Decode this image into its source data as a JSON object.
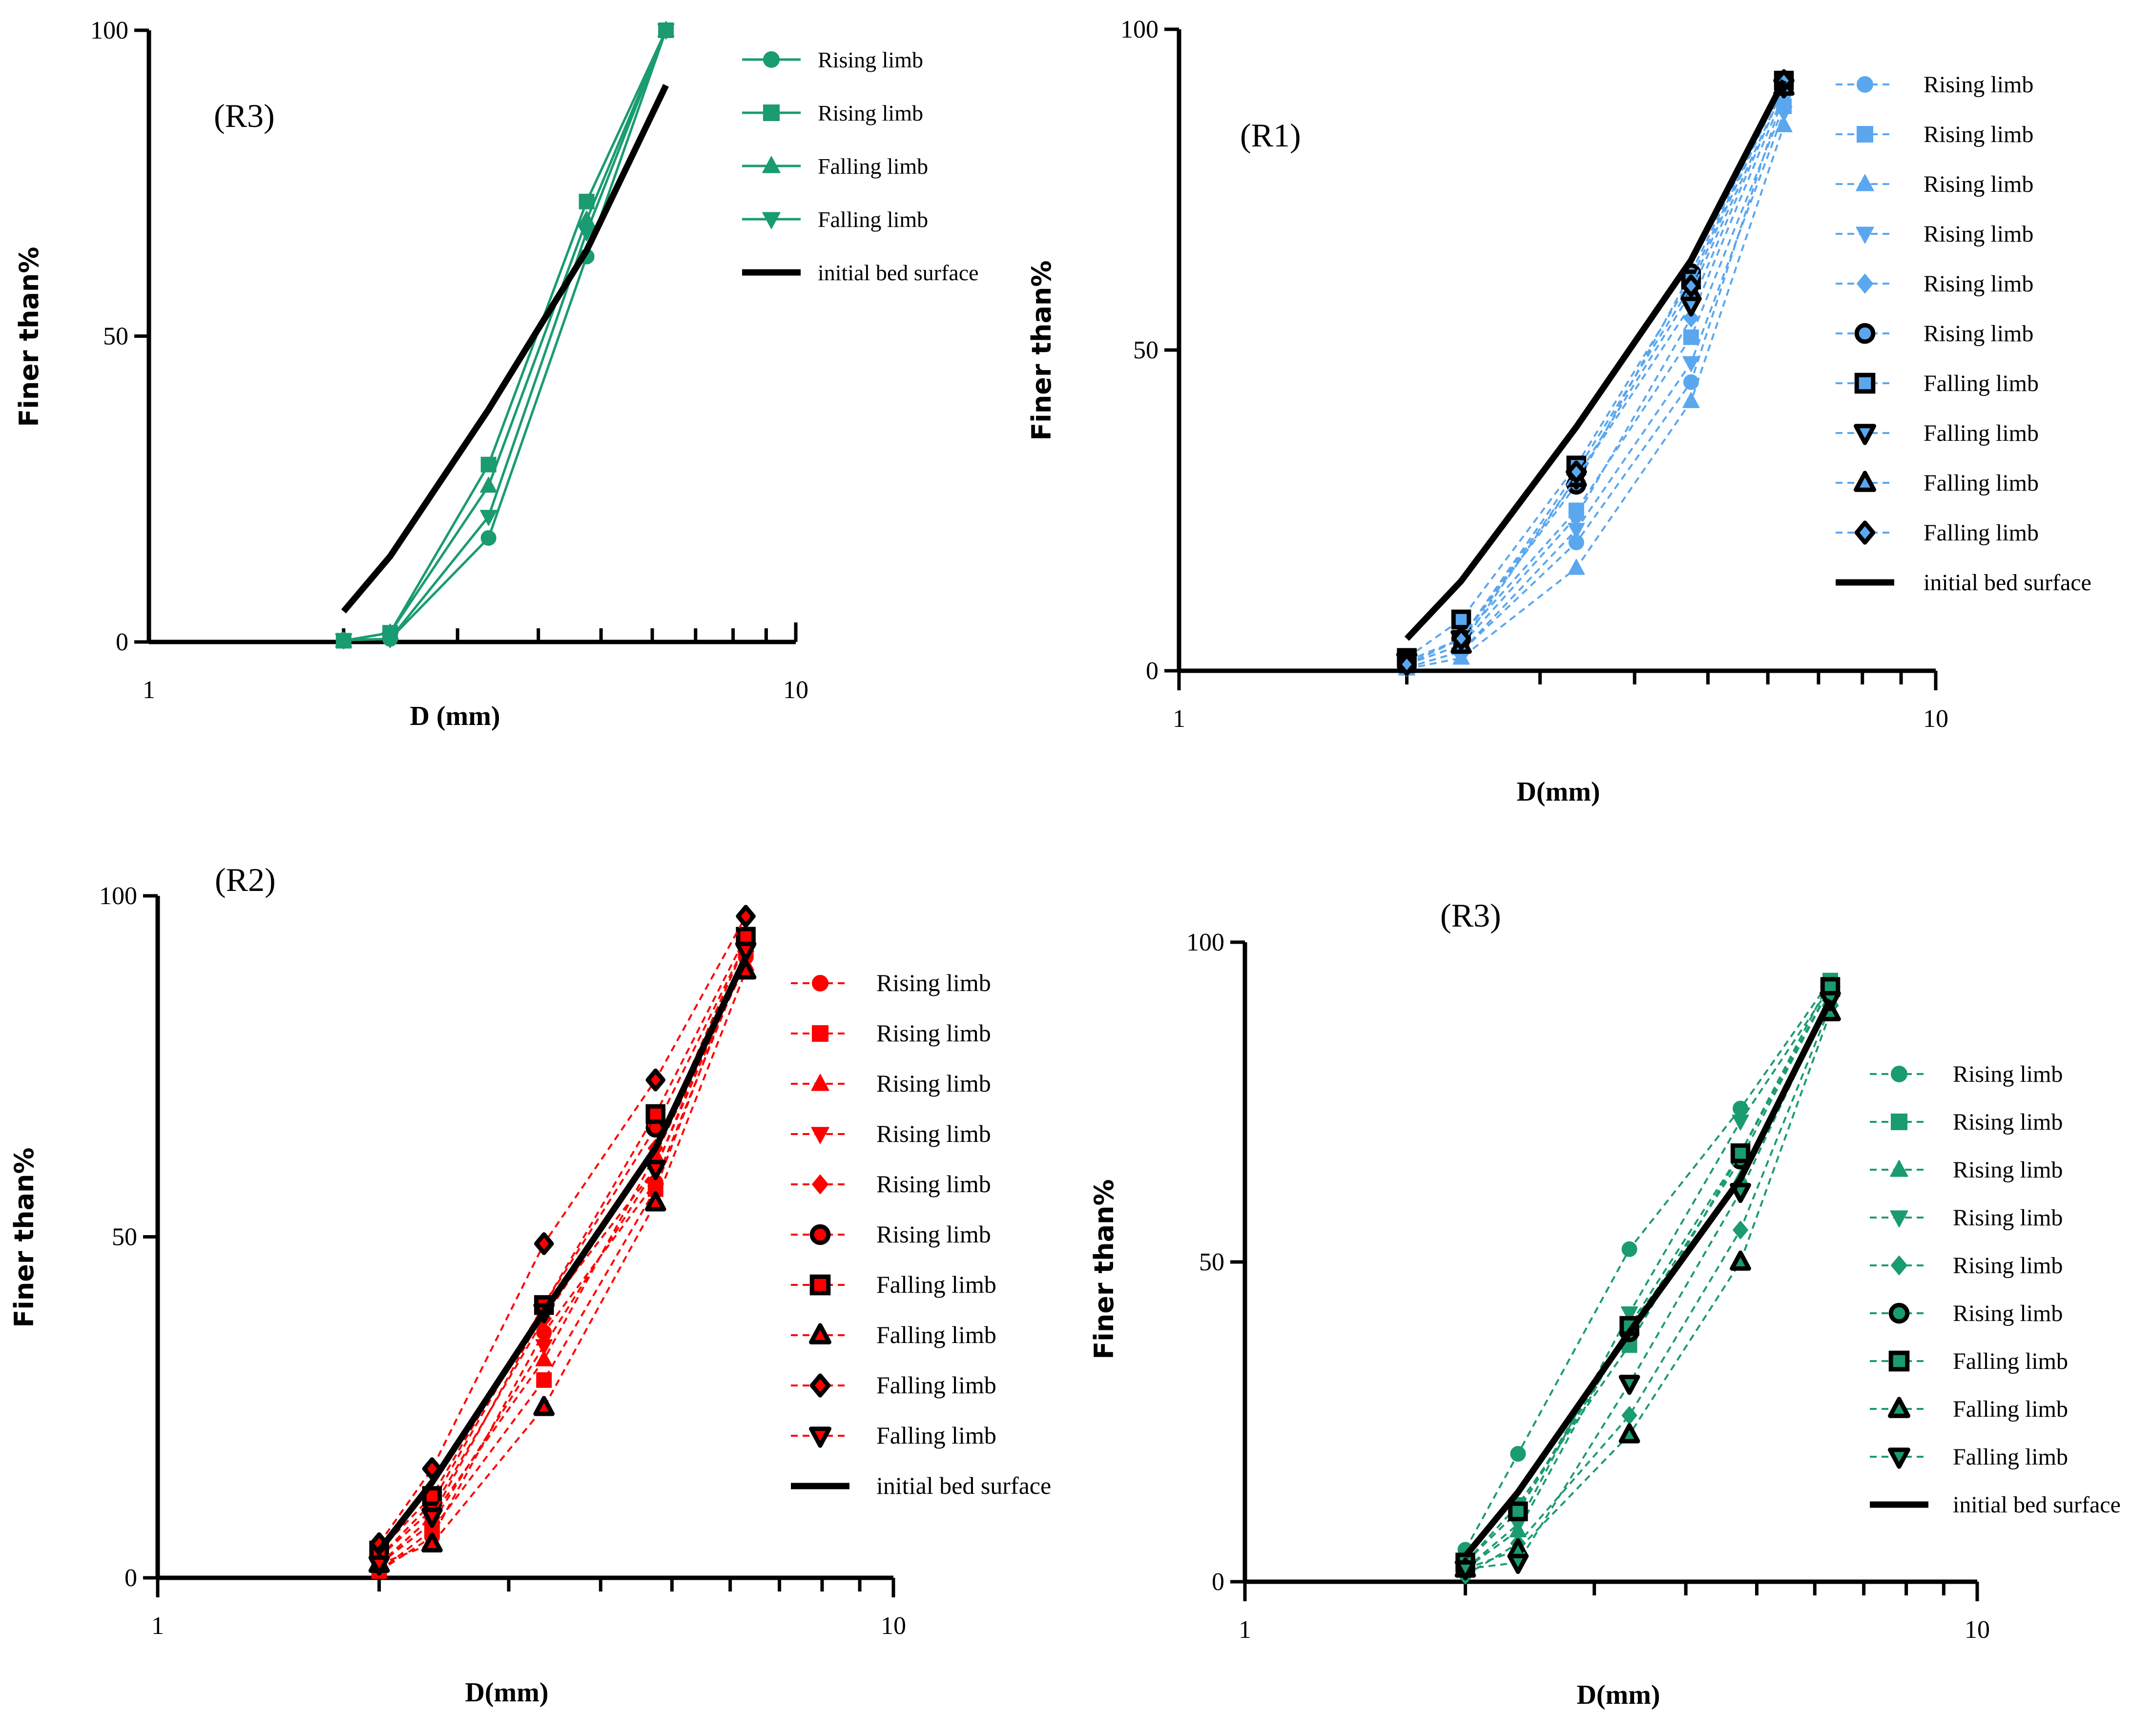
{
  "colors": {
    "green": "#1a9b72",
    "blue": "#5aa7f0",
    "red": "#ff0000",
    "black": "#000000"
  },
  "chart_data": [
    {
      "id": "panel-r3-top",
      "type": "line",
      "title": "(R3)",
      "xlabel": "D (mm)",
      "ylabel": "Finer than%",
      "xscale": "log",
      "xlim": [
        1,
        10
      ],
      "ylim": [
        0,
        100
      ],
      "xticks": [
        {
          "v": 1,
          "label": "1"
        },
        {
          "v": 10,
          "label": "10"
        }
      ],
      "yticks": [
        {
          "v": 0,
          "label": "0"
        },
        {
          "v": 50,
          "label": "50"
        },
        {
          "v": 100,
          "label": "100"
        }
      ],
      "legend_position": "top-right",
      "x": [
        2,
        2.36,
        3.35,
        4.75,
        6.3
      ],
      "series": [
        {
          "name": "Rising limb",
          "marker": "circle",
          "style": "solid",
          "color": "#1a9b72",
          "values": [
            0.3,
            0.5,
            17,
            63,
            100
          ]
        },
        {
          "name": "Rising limb",
          "marker": "square",
          "style": "solid",
          "color": "#1a9b72",
          "values": [
            0.2,
            1.5,
            29,
            72,
            100
          ]
        },
        {
          "name": "Falling limb",
          "marker": "triangle-up",
          "style": "solid",
          "color": "#1a9b72",
          "values": [
            0.2,
            1.5,
            25.5,
            69,
            100
          ]
        },
        {
          "name": "Falling limb",
          "marker": "triangle-down",
          "style": "solid",
          "color": "#1a9b72",
          "values": [
            0.3,
            0.5,
            20.5,
            67,
            100
          ]
        },
        {
          "name": "initial bed surface",
          "marker": "none",
          "style": "thick",
          "color": "#000000",
          "x": [
            2,
            2.36,
            3.35,
            4.75,
            6.3
          ],
          "values": [
            5,
            14,
            38,
            64,
            91
          ]
        }
      ]
    },
    {
      "id": "panel-r1",
      "type": "line",
      "title": "(R1)",
      "xlabel": "D(mm)",
      "ylabel": "Finer than%",
      "xscale": "log",
      "xlim": [
        1,
        10
      ],
      "ylim": [
        0,
        100
      ],
      "xticks": [
        {
          "v": 1,
          "label": "1"
        },
        {
          "v": 10,
          "label": "10"
        }
      ],
      "yticks": [
        {
          "v": 0,
          "label": "0"
        },
        {
          "v": 50,
          "label": "50"
        },
        {
          "v": 100,
          "label": "100"
        }
      ],
      "legend_position": "top-right",
      "x": [
        2,
        2.36,
        3.35,
        4.75,
        6.3
      ],
      "series": [
        {
          "name": "Rising limb",
          "marker": "circle",
          "style": "dashed",
          "color": "#5aa7f0",
          "values": [
            0.5,
            3,
            20,
            45,
            90
          ]
        },
        {
          "name": "Rising limb",
          "marker": "square",
          "style": "dashed",
          "color": "#5aa7f0",
          "values": [
            1,
            5,
            25,
            52,
            88
          ]
        },
        {
          "name": "Rising limb",
          "marker": "triangle-up",
          "style": "dashed",
          "color": "#5aa7f0",
          "values": [
            0.3,
            2,
            16,
            42,
            85
          ]
        },
        {
          "name": "Rising limb",
          "marker": "triangle-down",
          "style": "dashed",
          "color": "#5aa7f0",
          "values": [
            0.5,
            3,
            22,
            48,
            87
          ]
        },
        {
          "name": "Rising limb",
          "marker": "diamond",
          "style": "dashed",
          "color": "#5aa7f0",
          "values": [
            1,
            4,
            24,
            55,
            90
          ]
        },
        {
          "name": "Rising limb",
          "marker": "circle-open",
          "style": "dashed",
          "color": "#5aa7f0",
          "values": [
            1.5,
            5,
            29,
            62,
            92
          ]
        },
        {
          "name": "Falling limb",
          "marker": "square-open",
          "style": "dashed",
          "color": "#5aa7f0",
          "values": [
            2,
            8,
            32,
            61,
            92
          ]
        },
        {
          "name": "Falling limb",
          "marker": "triangle-down-open",
          "style": "dashed",
          "color": "#5aa7f0",
          "values": [
            1.5,
            5,
            30,
            57,
            91
          ]
        },
        {
          "name": "Falling limb",
          "marker": "triangle-up-open",
          "style": "dashed",
          "color": "#5aa7f0",
          "values": [
            1,
            4,
            30,
            59,
            91
          ]
        },
        {
          "name": "Falling limb",
          "marker": "diamond-open",
          "style": "dashed",
          "color": "#5aa7f0",
          "values": [
            1,
            5,
            31,
            60,
            92
          ]
        },
        {
          "name": "initial bed surface",
          "marker": "none",
          "style": "thick",
          "color": "#000000",
          "values": [
            5,
            14,
            38,
            64,
            92
          ]
        }
      ]
    },
    {
      "id": "panel-r2",
      "type": "line",
      "title": "(R2)",
      "xlabel": "D(mm)",
      "ylabel": "Finer than%",
      "xscale": "log",
      "xlim": [
        1,
        10
      ],
      "ylim": [
        0,
        100
      ],
      "xticks": [
        {
          "v": 1,
          "label": "1"
        },
        {
          "v": 10,
          "label": "10"
        }
      ],
      "yticks": [
        {
          "v": 0,
          "label": "0"
        },
        {
          "v": 50,
          "label": "50"
        },
        {
          "v": 100,
          "label": "100"
        }
      ],
      "legend_position": "right",
      "x": [
        2,
        2.36,
        3.35,
        4.75,
        6.3
      ],
      "series": [
        {
          "name": "Rising limb",
          "marker": "circle",
          "style": "dashed",
          "color": "#ff0000",
          "values": [
            1,
            6,
            36,
            58,
            91
          ]
        },
        {
          "name": "Rising limb",
          "marker": "square",
          "style": "dashed",
          "color": "#ff0000",
          "values": [
            1,
            7,
            29,
            57,
            92
          ]
        },
        {
          "name": "Rising limb",
          "marker": "triangle-up",
          "style": "dashed",
          "color": "#ff0000",
          "values": [
            2,
            9,
            32,
            62,
            90
          ]
        },
        {
          "name": "Rising limb",
          "marker": "triangle-down",
          "style": "dashed",
          "color": "#ff0000",
          "values": [
            2,
            8,
            34,
            60,
            91
          ]
        },
        {
          "name": "Rising limb",
          "marker": "diamond",
          "style": "dashed",
          "color": "#ff0000",
          "values": [
            3,
            10,
            38,
            63,
            93
          ]
        },
        {
          "name": "Rising limb",
          "marker": "circle-open",
          "style": "dashed",
          "color": "#ff0000",
          "values": [
            3,
            11,
            40,
            66,
            93
          ]
        },
        {
          "name": "Falling limb",
          "marker": "square-open",
          "style": "dashed",
          "color": "#ff0000",
          "values": [
            4,
            12,
            40,
            68,
            94
          ]
        },
        {
          "name": "Falling limb",
          "marker": "triangle-up-open",
          "style": "dashed",
          "color": "#ff0000",
          "values": [
            2,
            5,
            25,
            55,
            89
          ]
        },
        {
          "name": "Falling limb",
          "marker": "diamond-open",
          "style": "dashed",
          "color": "#ff0000",
          "values": [
            5,
            16,
            49,
            73,
            97
          ]
        },
        {
          "name": "Falling limb",
          "marker": "triangle-down-open",
          "style": "dashed",
          "color": "#ff0000",
          "values": [
            2,
            9,
            39,
            60,
            92
          ]
        },
        {
          "name": "initial bed surface",
          "marker": "none",
          "style": "thick",
          "color": "#000000",
          "values": [
            4,
            14,
            39,
            63,
            91
          ]
        }
      ]
    },
    {
      "id": "panel-r3-bottom",
      "type": "line",
      "title": "(R3)",
      "xlabel": "D(mm)",
      "ylabel": "Finer than%",
      "xscale": "log",
      "xlim": [
        1,
        10
      ],
      "ylim": [
        0,
        100
      ],
      "xticks": [
        {
          "v": 1,
          "label": "1"
        },
        {
          "v": 10,
          "label": "10"
        }
      ],
      "yticks": [
        {
          "v": 0,
          "label": "0"
        },
        {
          "v": 50,
          "label": "50"
        },
        {
          "v": 100,
          "label": "100"
        }
      ],
      "legend_position": "right",
      "x": [
        2,
        2.36,
        3.35,
        4.75,
        6.3
      ],
      "series": [
        {
          "name": "Rising limb",
          "marker": "circle",
          "style": "dashed",
          "color": "#1a9b72",
          "values": [
            5,
            20,
            52,
            74,
            94
          ]
        },
        {
          "name": "Rising limb",
          "marker": "square",
          "style": "dashed",
          "color": "#1a9b72",
          "values": [
            3,
            12,
            37,
            67,
            94
          ]
        },
        {
          "name": "Rising limb",
          "marker": "triangle-up",
          "style": "dashed",
          "color": "#1a9b72",
          "values": [
            2,
            8,
            40,
            63,
            91
          ]
        },
        {
          "name": "Rising limb",
          "marker": "triangle-down",
          "style": "dashed",
          "color": "#1a9b72",
          "values": [
            2,
            9,
            42,
            72,
            93
          ]
        },
        {
          "name": "Rising limb",
          "marker": "diamond",
          "style": "dashed",
          "color": "#1a9b72",
          "values": [
            1,
            6,
            26,
            55,
            90
          ]
        },
        {
          "name": "Rising limb",
          "marker": "circle-open",
          "style": "dashed",
          "color": "#1a9b72",
          "values": [
            3,
            11,
            39,
            66,
            93
          ]
        },
        {
          "name": "Falling limb",
          "marker": "square-open",
          "style": "dashed",
          "color": "#1a9b72",
          "values": [
            3,
            11,
            40,
            67,
            93
          ]
        },
        {
          "name": "Falling limb",
          "marker": "triangle-up-open",
          "style": "dashed",
          "color": "#1a9b72",
          "values": [
            2,
            5,
            23,
            50,
            89
          ]
        },
        {
          "name": "Falling limb",
          "marker": "triangle-down-open",
          "style": "dashed",
          "color": "#1a9b72",
          "values": [
            2,
            3,
            31,
            61,
            91
          ]
        },
        {
          "name": "initial bed surface",
          "marker": "none",
          "style": "thick",
          "color": "#000000",
          "values": [
            4,
            14,
            39,
            63,
            91
          ]
        }
      ]
    }
  ]
}
